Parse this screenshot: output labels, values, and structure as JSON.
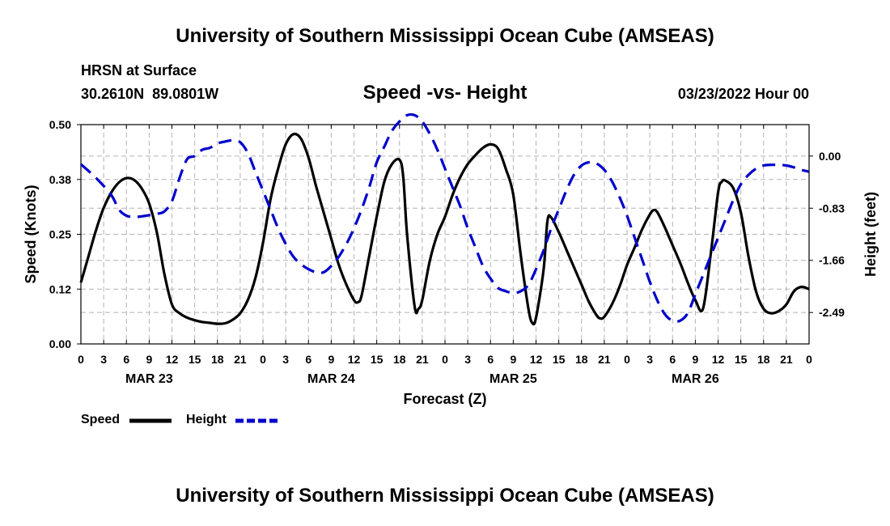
{
  "header": {
    "title": "University of Southern Mississippi Ocean Cube (AMSEAS)",
    "station": "HRSN at Surface",
    "lat": "30.2610N",
    "lon": "89.0801W",
    "chart_title": "Speed -vs- Height",
    "date": "03/23/2022 Hour 00"
  },
  "footer": {
    "title": "University of Southern Mississippi Ocean Cube (AMSEAS)"
  },
  "legend": {
    "items": [
      {
        "label": "Speed",
        "color": "#000000",
        "style": "solid"
      },
      {
        "label": "Height",
        "color": "#0000cc",
        "style": "dashed"
      }
    ]
  },
  "chart_data": {
    "type": "line",
    "title": "Speed -vs- Height",
    "xlabel": "Forecast (Z)",
    "ylabel_left": "Speed (Knots)",
    "ylabel_right": "Height (feet)",
    "x_unit": "hours from 03/23/2022 00Z",
    "xlim": [
      0,
      96
    ],
    "ylim_left": [
      0,
      0.5
    ],
    "ylim_right": [
      -2.99,
      0.5
    ],
    "x_tick_labels": [
      "0",
      "3",
      "6",
      "9",
      "12",
      "15",
      "18",
      "21",
      "0",
      "3",
      "6",
      "9",
      "12",
      "15",
      "18",
      "21",
      "0",
      "3",
      "6",
      "9",
      "12",
      "15",
      "18",
      "21",
      "0",
      "3",
      "6",
      "9",
      "12",
      "15",
      "18",
      "21",
      "0"
    ],
    "date_labels": [
      {
        "label": "MAR 23",
        "x": 9
      },
      {
        "label": "MAR 24",
        "x": 33
      },
      {
        "label": "MAR 25",
        "x": 57
      },
      {
        "label": "MAR 26",
        "x": 81
      }
    ],
    "y_left_ticks": [
      "0.00",
      "0.12",
      "0.25",
      "0.38",
      "0.50"
    ],
    "y_left_values": [
      0,
      0.125,
      0.25,
      0.375,
      0.5
    ],
    "y_right_ticks": [
      "0.00",
      "-0.83",
      "-1.66",
      "-2.49"
    ],
    "y_right_values": [
      0,
      -0.83,
      -1.66,
      -2.49
    ],
    "grid": true,
    "series": [
      {
        "name": "Speed",
        "axis": "left",
        "color": "#000000",
        "dash": "solid",
        "points": [
          [
            0,
            0.14
          ],
          [
            1,
            0.2
          ],
          [
            2,
            0.26
          ],
          [
            3,
            0.31
          ],
          [
            4,
            0.345
          ],
          [
            5,
            0.368
          ],
          [
            6,
            0.378
          ],
          [
            7,
            0.374
          ],
          [
            8,
            0.355
          ],
          [
            9,
            0.32
          ],
          [
            10,
            0.255
          ],
          [
            11,
            0.16
          ],
          [
            12,
            0.09
          ],
          [
            13,
            0.07
          ],
          [
            14,
            0.06
          ],
          [
            15,
            0.054
          ],
          [
            16,
            0.05
          ],
          [
            17,
            0.048
          ],
          [
            18,
            0.046
          ],
          [
            19,
            0.047
          ],
          [
            20,
            0.055
          ],
          [
            21,
            0.07
          ],
          [
            22,
            0.1
          ],
          [
            23,
            0.15
          ],
          [
            24,
            0.23
          ],
          [
            25,
            0.33
          ],
          [
            26,
            0.4
          ],
          [
            27,
            0.455
          ],
          [
            28,
            0.478
          ],
          [
            29,
            0.468
          ],
          [
            30,
            0.425
          ],
          [
            31,
            0.36
          ],
          [
            32,
            0.3
          ],
          [
            33,
            0.24
          ],
          [
            34,
            0.18
          ],
          [
            35,
            0.135
          ],
          [
            36,
            0.1
          ],
          [
            36.5,
            0.095
          ],
          [
            37,
            0.11
          ],
          [
            38,
            0.2
          ],
          [
            39,
            0.29
          ],
          [
            40,
            0.37
          ],
          [
            41,
            0.41
          ],
          [
            42,
            0.42
          ],
          [
            42.5,
            0.38
          ],
          [
            43,
            0.25
          ],
          [
            44,
            0.085
          ],
          [
            44.5,
            0.08
          ],
          [
            45,
            0.1
          ],
          [
            46,
            0.19
          ],
          [
            47,
            0.25
          ],
          [
            48,
            0.29
          ],
          [
            49,
            0.34
          ],
          [
            50,
            0.38
          ],
          [
            51,
            0.41
          ],
          [
            52,
            0.43
          ],
          [
            53,
            0.447
          ],
          [
            54,
            0.455
          ],
          [
            55,
            0.445
          ],
          [
            56,
            0.4
          ],
          [
            57,
            0.34
          ],
          [
            58,
            0.2
          ],
          [
            59,
            0.08
          ],
          [
            59.5,
            0.048
          ],
          [
            60,
            0.06
          ],
          [
            61,
            0.17
          ],
          [
            61.5,
            0.28
          ],
          [
            62,
            0.288
          ],
          [
            63,
            0.255
          ],
          [
            64,
            0.215
          ],
          [
            65,
            0.175
          ],
          [
            66,
            0.135
          ],
          [
            67,
            0.095
          ],
          [
            68,
            0.065
          ],
          [
            68.5,
            0.058
          ],
          [
            69,
            0.062
          ],
          [
            70,
            0.09
          ],
          [
            71,
            0.13
          ],
          [
            72,
            0.18
          ],
          [
            73,
            0.22
          ],
          [
            74,
            0.262
          ],
          [
            75,
            0.295
          ],
          [
            75.5,
            0.305
          ],
          [
            76,
            0.3
          ],
          [
            77,
            0.265
          ],
          [
            78,
            0.225
          ],
          [
            79,
            0.185
          ],
          [
            80,
            0.14
          ],
          [
            81,
            0.1
          ],
          [
            82,
            0.08
          ],
          [
            83,
            0.2
          ],
          [
            84,
            0.345
          ],
          [
            84.5,
            0.37
          ],
          [
            85,
            0.372
          ],
          [
            86,
            0.355
          ],
          [
            87,
            0.3
          ],
          [
            88,
            0.2
          ],
          [
            89,
            0.12
          ],
          [
            90,
            0.08
          ],
          [
            91,
            0.07
          ],
          [
            92,
            0.075
          ],
          [
            93,
            0.09
          ],
          [
            94,
            0.12
          ],
          [
            95,
            0.13
          ],
          [
            96,
            0.125
          ]
        ]
      },
      {
        "name": "Height",
        "axis": "right",
        "color": "#0000cc",
        "dash": "dashed",
        "points": [
          [
            0,
            -0.13
          ],
          [
            2,
            -0.35
          ],
          [
            4,
            -0.62
          ],
          [
            5,
            -0.85
          ],
          [
            6,
            -0.95
          ],
          [
            7,
            -0.97
          ],
          [
            8,
            -0.96
          ],
          [
            10,
            -0.92
          ],
          [
            11,
            -0.88
          ],
          [
            12,
            -0.72
          ],
          [
            13,
            -0.35
          ],
          [
            14,
            -0.05
          ],
          [
            15,
            0.0
          ],
          [
            16,
            0.1
          ],
          [
            17,
            0.13
          ],
          [
            18,
            0.2
          ],
          [
            19,
            0.23
          ],
          [
            20,
            0.25
          ],
          [
            21,
            0.22
          ],
          [
            22,
            0.05
          ],
          [
            23,
            -0.25
          ],
          [
            24,
            -0.55
          ],
          [
            25,
            -0.85
          ],
          [
            26,
            -1.15
          ],
          [
            27,
            -1.4
          ],
          [
            28,
            -1.6
          ],
          [
            29,
            -1.72
          ],
          [
            30,
            -1.8
          ],
          [
            31,
            -1.85
          ],
          [
            32,
            -1.85
          ],
          [
            33,
            -1.75
          ],
          [
            34,
            -1.6
          ],
          [
            35,
            -1.4
          ],
          [
            36,
            -1.15
          ],
          [
            37,
            -0.85
          ],
          [
            38,
            -0.5
          ],
          [
            39,
            -0.1
          ],
          [
            40,
            0.15
          ],
          [
            41,
            0.4
          ],
          [
            42,
            0.55
          ],
          [
            43,
            0.65
          ],
          [
            44,
            0.65
          ],
          [
            45,
            0.55
          ],
          [
            46,
            0.35
          ],
          [
            47,
            0.1
          ],
          [
            48,
            -0.2
          ],
          [
            49,
            -0.5
          ],
          [
            50,
            -0.8
          ],
          [
            51,
            -1.15
          ],
          [
            52,
            -1.45
          ],
          [
            53,
            -1.75
          ],
          [
            54,
            -1.95
          ],
          [
            55,
            -2.1
          ],
          [
            56,
            -2.15
          ],
          [
            57,
            -2.18
          ],
          [
            58,
            -2.15
          ],
          [
            59,
            -2.05
          ],
          [
            60,
            -1.8
          ],
          [
            61,
            -1.5
          ],
          [
            62,
            -1.15
          ],
          [
            63,
            -0.85
          ],
          [
            64,
            -0.55
          ],
          [
            65,
            -0.3
          ],
          [
            66,
            -0.15
          ],
          [
            67,
            -0.1
          ],
          [
            68,
            -0.12
          ],
          [
            69,
            -0.22
          ],
          [
            70,
            -0.4
          ],
          [
            71,
            -0.65
          ],
          [
            72,
            -0.95
          ],
          [
            73,
            -1.3
          ],
          [
            74,
            -1.65
          ],
          [
            75,
            -2.0
          ],
          [
            76,
            -2.3
          ],
          [
            77,
            -2.52
          ],
          [
            78,
            -2.62
          ],
          [
            79,
            -2.62
          ],
          [
            80,
            -2.5
          ],
          [
            81,
            -2.2
          ],
          [
            82,
            -1.9
          ],
          [
            83,
            -1.6
          ],
          [
            84,
            -1.3
          ],
          [
            85,
            -1.0
          ],
          [
            86,
            -0.7
          ],
          [
            87,
            -0.45
          ],
          [
            88,
            -0.3
          ],
          [
            89,
            -0.2
          ],
          [
            90,
            -0.15
          ],
          [
            91,
            -0.14
          ],
          [
            92,
            -0.14
          ],
          [
            93,
            -0.15
          ],
          [
            94,
            -0.18
          ],
          [
            95,
            -0.22
          ],
          [
            96,
            -0.25
          ]
        ]
      }
    ]
  }
}
